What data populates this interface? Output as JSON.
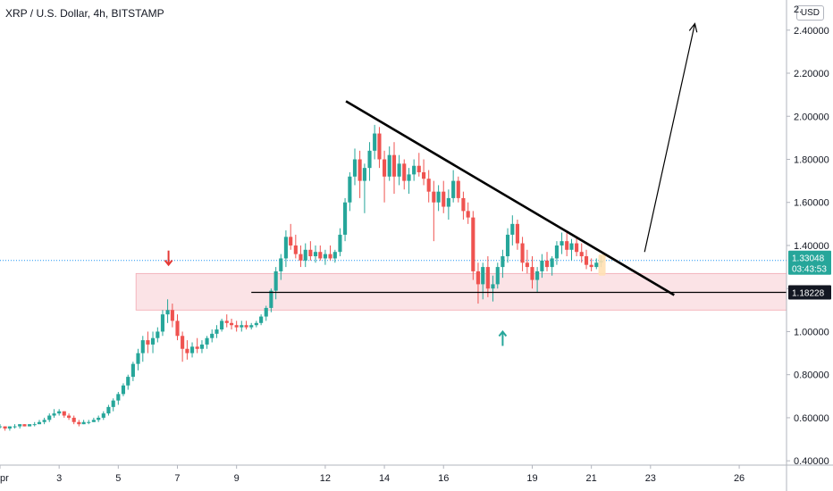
{
  "header": {
    "title": "XRP / U.S. Dollar, 4h, BITSTAMP",
    "currency": "USD"
  },
  "chart_data": {
    "type": "candlestick",
    "symbol": "XRP / U.S. Dollar",
    "interval": "4h",
    "exchange": "BITSTAMP",
    "y_ticks": [
      "0.40000",
      "0.60000",
      "0.80000",
      "1.00000",
      "1.20000",
      "1.40000",
      "1.60000",
      "1.80000",
      "2.00000",
      "2.20000",
      "2.40000"
    ],
    "y_tick_values": [
      0.4,
      0.6,
      0.8,
      1.0,
      1.2,
      1.4,
      1.6,
      1.8,
      2.0,
      2.2,
      2.4
    ],
    "top_partial_label": "2.",
    "ylim": [
      0.38,
      2.54
    ],
    "x_ticks": [
      "pr",
      "3",
      "5",
      "7",
      "9",
      "12",
      "14",
      "16",
      "19",
      "21",
      "23",
      "26"
    ],
    "x_tick_days": [
      1,
      3,
      5,
      7,
      9,
      12,
      14,
      16,
      19,
      21,
      23,
      26
    ],
    "xlim": [
      1,
      27.6
    ],
    "current_price": "1.33048",
    "countdown": "03:43:53",
    "support_price": "1.18228",
    "up_color": "#26a69a",
    "down_color": "#ef5350",
    "price_line_color": "#2196f3",
    "drawings": {
      "support_zone": {
        "x_start": 5.6,
        "x_end": 27.6,
        "y_low": 1.1,
        "y_high": 1.27
      },
      "support_line": {
        "x_start": 9.5,
        "x_end": 27.6,
        "y": 1.18228
      },
      "descending_trendline": {
        "x_start": 12.7,
        "y_start": 2.07,
        "x_end": 23.8,
        "y_end": 1.17
      },
      "projection_arrow": {
        "x_start": 22.8,
        "y_start": 1.37,
        "x_end": 24.5,
        "y_end": 2.43
      },
      "down_marker": {
        "x": 6.7,
        "y": 1.31
      },
      "up_marker": {
        "x": 18.0,
        "y": 1.0
      }
    },
    "candles": [
      [
        1.0,
        0.56,
        0.57,
        0.55,
        0.56
      ],
      [
        1.17,
        0.56,
        0.56,
        0.54,
        0.55
      ],
      [
        1.33,
        0.55,
        0.56,
        0.54,
        0.56
      ],
      [
        1.5,
        0.56,
        0.57,
        0.55,
        0.56
      ],
      [
        1.67,
        0.56,
        0.57,
        0.55,
        0.57
      ],
      [
        1.83,
        0.57,
        0.57,
        0.56,
        0.56
      ],
      [
        2.0,
        0.56,
        0.57,
        0.56,
        0.57
      ],
      [
        2.17,
        0.57,
        0.58,
        0.56,
        0.57
      ],
      [
        2.33,
        0.57,
        0.59,
        0.57,
        0.58
      ],
      [
        2.5,
        0.58,
        0.6,
        0.57,
        0.59
      ],
      [
        2.67,
        0.59,
        0.62,
        0.58,
        0.61
      ],
      [
        2.83,
        0.61,
        0.64,
        0.6,
        0.62
      ],
      [
        3.0,
        0.62,
        0.64,
        0.61,
        0.63
      ],
      [
        3.17,
        0.63,
        0.63,
        0.6,
        0.61
      ],
      [
        3.33,
        0.61,
        0.62,
        0.59,
        0.6
      ],
      [
        3.5,
        0.6,
        0.61,
        0.57,
        0.58
      ],
      [
        3.67,
        0.58,
        0.59,
        0.56,
        0.57
      ],
      [
        3.83,
        0.57,
        0.59,
        0.57,
        0.58
      ],
      [
        4.0,
        0.58,
        0.59,
        0.57,
        0.58
      ],
      [
        4.17,
        0.58,
        0.6,
        0.58,
        0.59
      ],
      [
        4.33,
        0.59,
        0.61,
        0.58,
        0.6
      ],
      [
        4.5,
        0.6,
        0.63,
        0.59,
        0.62
      ],
      [
        4.67,
        0.62,
        0.66,
        0.61,
        0.65
      ],
      [
        4.83,
        0.65,
        0.69,
        0.63,
        0.68
      ],
      [
        5.0,
        0.68,
        0.72,
        0.66,
        0.71
      ],
      [
        5.17,
        0.71,
        0.76,
        0.7,
        0.75
      ],
      [
        5.33,
        0.75,
        0.8,
        0.73,
        0.79
      ],
      [
        5.5,
        0.79,
        0.86,
        0.77,
        0.85
      ],
      [
        5.67,
        0.85,
        0.92,
        0.82,
        0.9
      ],
      [
        5.83,
        0.9,
        0.98,
        0.86,
        0.96
      ],
      [
        6.0,
        0.96,
        1.0,
        0.9,
        0.94
      ],
      [
        6.17,
        0.94,
        1.0,
        0.9,
        0.97
      ],
      [
        6.33,
        0.97,
        1.02,
        0.95,
        1.0
      ],
      [
        6.5,
        1.0,
        1.1,
        0.98,
        1.08
      ],
      [
        6.67,
        1.08,
        1.15,
        1.04,
        1.1
      ],
      [
        6.83,
        1.1,
        1.13,
        1.02,
        1.05
      ],
      [
        7.0,
        1.05,
        1.08,
        0.96,
        0.98
      ],
      [
        7.17,
        0.98,
        1.0,
        0.86,
        0.92
      ],
      [
        7.33,
        0.92,
        0.96,
        0.87,
        0.9
      ],
      [
        7.5,
        0.9,
        0.95,
        0.88,
        0.93
      ],
      [
        7.67,
        0.93,
        0.97,
        0.9,
        0.92
      ],
      [
        7.83,
        0.92,
        0.96,
        0.9,
        0.94
      ],
      [
        8.0,
        0.94,
        0.98,
        0.92,
        0.97
      ],
      [
        8.17,
        0.97,
        1.01,
        0.95,
        0.99
      ],
      [
        8.33,
        0.99,
        1.03,
        0.97,
        1.01
      ],
      [
        8.5,
        1.01,
        1.06,
        1.0,
        1.05
      ],
      [
        8.67,
        1.05,
        1.08,
        1.02,
        1.04
      ],
      [
        8.83,
        1.04,
        1.06,
        1.01,
        1.03
      ],
      [
        9.0,
        1.03,
        1.05,
        1.0,
        1.02
      ],
      [
        9.17,
        1.02,
        1.05,
        1.0,
        1.03
      ],
      [
        9.33,
        1.03,
        1.05,
        1.01,
        1.02
      ],
      [
        9.5,
        1.02,
        1.04,
        1.01,
        1.03
      ],
      [
        9.67,
        1.03,
        1.05,
        1.02,
        1.04
      ],
      [
        9.83,
        1.04,
        1.08,
        1.03,
        1.07
      ],
      [
        10.0,
        1.07,
        1.12,
        1.05,
        1.11
      ],
      [
        10.17,
        1.11,
        1.2,
        1.09,
        1.19
      ],
      [
        10.33,
        1.19,
        1.3,
        1.15,
        1.28
      ],
      [
        10.5,
        1.28,
        1.36,
        1.24,
        1.34
      ],
      [
        10.67,
        1.34,
        1.47,
        1.3,
        1.44
      ],
      [
        10.83,
        1.44,
        1.5,
        1.38,
        1.4
      ],
      [
        11.0,
        1.4,
        1.45,
        1.34,
        1.36
      ],
      [
        11.17,
        1.36,
        1.4,
        1.3,
        1.33
      ],
      [
        11.33,
        1.33,
        1.41,
        1.3,
        1.38
      ],
      [
        11.5,
        1.38,
        1.42,
        1.33,
        1.35
      ],
      [
        11.67,
        1.35,
        1.4,
        1.32,
        1.37
      ],
      [
        11.83,
        1.37,
        1.4,
        1.33,
        1.34
      ],
      [
        12.0,
        1.34,
        1.38,
        1.31,
        1.36
      ],
      [
        12.17,
        1.36,
        1.4,
        1.33,
        1.34
      ],
      [
        12.33,
        1.34,
        1.38,
        1.32,
        1.37
      ],
      [
        12.5,
        1.37,
        1.48,
        1.35,
        1.45
      ],
      [
        12.67,
        1.45,
        1.62,
        1.42,
        1.6
      ],
      [
        12.83,
        1.6,
        1.74,
        1.56,
        1.72
      ],
      [
        13.0,
        1.72,
        1.85,
        1.68,
        1.8
      ],
      [
        13.17,
        1.8,
        1.84,
        1.62,
        1.7
      ],
      [
        13.33,
        1.7,
        1.78,
        1.55,
        1.76
      ],
      [
        13.5,
        1.76,
        1.88,
        1.7,
        1.84
      ],
      [
        13.67,
        1.84,
        1.96,
        1.8,
        1.92
      ],
      [
        13.83,
        1.92,
        1.95,
        1.76,
        1.8
      ],
      [
        14.0,
        1.8,
        1.84,
        1.6,
        1.72
      ],
      [
        14.17,
        1.72,
        1.86,
        1.7,
        1.82
      ],
      [
        14.33,
        1.82,
        1.88,
        1.64,
        1.72
      ],
      [
        14.5,
        1.72,
        1.82,
        1.68,
        1.78
      ],
      [
        14.67,
        1.78,
        1.8,
        1.66,
        1.7
      ],
      [
        14.83,
        1.7,
        1.76,
        1.64,
        1.73
      ],
      [
        15.0,
        1.73,
        1.8,
        1.7,
        1.77
      ],
      [
        15.17,
        1.77,
        1.83,
        1.72,
        1.74
      ],
      [
        15.33,
        1.74,
        1.8,
        1.68,
        1.71
      ],
      [
        15.5,
        1.71,
        1.75,
        1.6,
        1.65
      ],
      [
        15.67,
        1.65,
        1.7,
        1.42,
        1.6
      ],
      [
        15.83,
        1.6,
        1.68,
        1.56,
        1.65
      ],
      [
        16.0,
        1.65,
        1.7,
        1.55,
        1.58
      ],
      [
        16.17,
        1.58,
        1.66,
        1.52,
        1.62
      ],
      [
        16.33,
        1.62,
        1.75,
        1.6,
        1.7
      ],
      [
        16.5,
        1.7,
        1.72,
        1.6,
        1.62
      ],
      [
        16.67,
        1.62,
        1.65,
        1.52,
        1.56
      ],
      [
        16.83,
        1.56,
        1.6,
        1.5,
        1.53
      ],
      [
        17.0,
        1.53,
        1.56,
        1.24,
        1.28
      ],
      [
        17.17,
        1.28,
        1.32,
        1.13,
        1.22
      ],
      [
        17.33,
        1.22,
        1.32,
        1.15,
        1.3
      ],
      [
        17.5,
        1.3,
        1.35,
        1.16,
        1.2
      ],
      [
        17.67,
        1.2,
        1.26,
        1.14,
        1.22
      ],
      [
        17.83,
        1.22,
        1.32,
        1.2,
        1.3
      ],
      [
        18.0,
        1.3,
        1.38,
        1.25,
        1.35
      ],
      [
        18.17,
        1.35,
        1.48,
        1.32,
        1.45
      ],
      [
        18.33,
        1.45,
        1.54,
        1.4,
        1.5
      ],
      [
        18.5,
        1.5,
        1.52,
        1.38,
        1.41
      ],
      [
        18.67,
        1.41,
        1.44,
        1.28,
        1.32
      ],
      [
        18.83,
        1.32,
        1.38,
        1.27,
        1.3
      ],
      [
        19.0,
        1.3,
        1.35,
        1.2,
        1.24
      ],
      [
        19.17,
        1.24,
        1.3,
        1.18,
        1.28
      ],
      [
        19.33,
        1.28,
        1.36,
        1.25,
        1.33
      ],
      [
        19.5,
        1.33,
        1.37,
        1.28,
        1.3
      ],
      [
        19.67,
        1.3,
        1.35,
        1.26,
        1.34
      ],
      [
        19.83,
        1.34,
        1.42,
        1.31,
        1.4
      ],
      [
        20.0,
        1.4,
        1.46,
        1.36,
        1.42
      ],
      [
        20.17,
        1.42,
        1.46,
        1.35,
        1.38
      ],
      [
        20.33,
        1.38,
        1.43,
        1.33,
        1.41
      ],
      [
        20.5,
        1.41,
        1.44,
        1.35,
        1.37
      ],
      [
        20.67,
        1.37,
        1.41,
        1.32,
        1.35
      ],
      [
        20.83,
        1.35,
        1.38,
        1.29,
        1.31
      ],
      [
        21.0,
        1.31,
        1.34,
        1.28,
        1.3
      ],
      [
        21.17,
        1.3,
        1.34,
        1.29,
        1.32
      ],
      [
        21.33,
        1.32,
        1.35,
        1.3,
        1.33
      ]
    ]
  }
}
